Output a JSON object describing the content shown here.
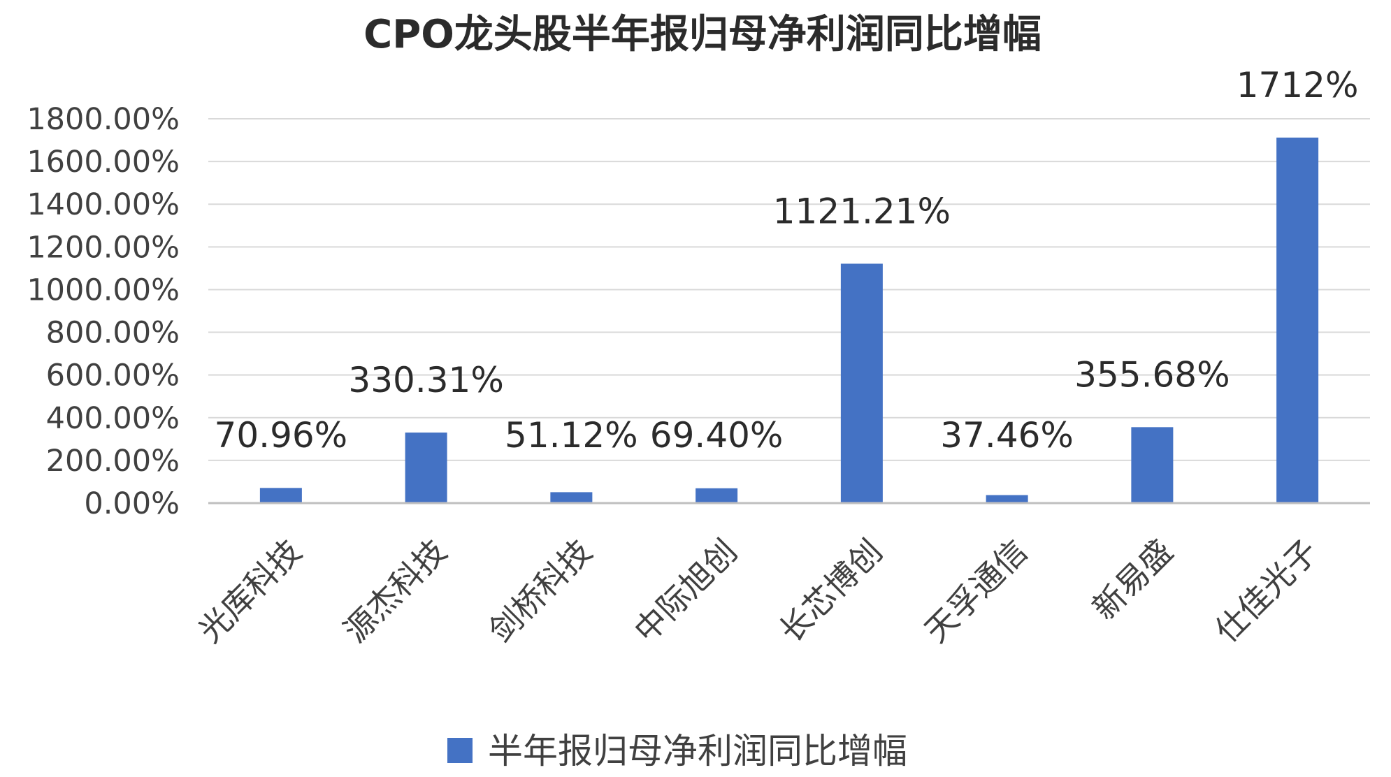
{
  "chart_data": {
    "type": "bar",
    "title": "CPO龙头股半年报归母净利润同比增幅",
    "xlabel": "",
    "ylabel": "",
    "categories": [
      "光库科技",
      "源杰科技",
      "剑桥科技",
      "中际旭创",
      "长芯博创",
      "天孚通信",
      "新易盛",
      "仕佳光子"
    ],
    "series": [
      {
        "name": "半年报归母净利润同比增幅",
        "values": [
          70.96,
          330.31,
          51.12,
          69.4,
          1121.21,
          37.46,
          355.68,
          1712
        ],
        "labels": [
          "70.96%",
          "330.31%",
          "51.12%",
          "69.40%",
          "1121.21%",
          "37.46%",
          "355.68%",
          "1712%"
        ],
        "color": "#4472C4"
      }
    ],
    "ylim": [
      0,
      1800
    ],
    "yticks": [
      0,
      200,
      400,
      600,
      800,
      1000,
      1200,
      1400,
      1600,
      1800
    ],
    "ytick_labels": [
      "0.00%",
      "200.00%",
      "400.00%",
      "600.00%",
      "800.00%",
      "1000.00%",
      "1200.00%",
      "1400.00%",
      "1600.00%",
      "1800.00%"
    ],
    "grid": true,
    "legend": {
      "position": "bottom",
      "entries": [
        "半年报归母净利润同比增幅"
      ]
    }
  }
}
